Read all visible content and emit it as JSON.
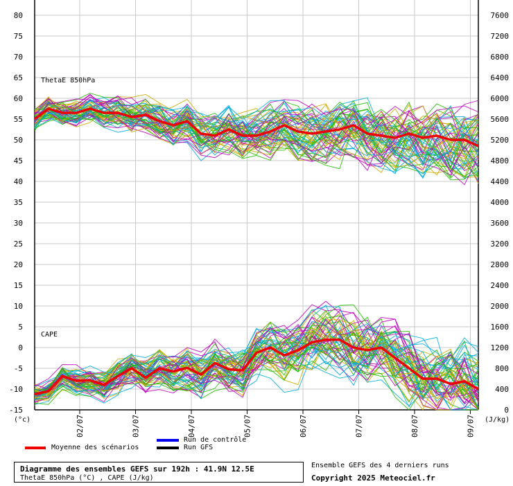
{
  "chart_data": {
    "type": "line",
    "panels": [
      {
        "label": "ThetaE 850hPa",
        "axis": "left",
        "unit": "(°c)"
      },
      {
        "label": "CAPE",
        "axis": "right",
        "unit": "(J/kg)"
      }
    ],
    "x_ticks": [
      "02/07",
      "03/07",
      "04/07",
      "05/07",
      "06/07",
      "07/07",
      "08/07",
      "09/07"
    ],
    "left_axis": {
      "unit": "(°c)",
      "ylim": [
        -15,
        80
      ],
      "ticks": [
        80,
        75,
        70,
        65,
        60,
        55,
        50,
        45,
        40,
        35,
        30,
        25,
        20,
        15,
        10,
        5,
        0,
        -5,
        -10,
        -15
      ]
    },
    "right_axis": {
      "unit": "(J/kg)",
      "ylim": [
        0,
        7600
      ],
      "ticks": [
        7600,
        7200,
        6800,
        6400,
        6000,
        5600,
        5200,
        4800,
        4400,
        4000,
        3600,
        3200,
        2800,
        2400,
        2000,
        1600,
        1200,
        800,
        400,
        0
      ]
    },
    "grid": true,
    "series": [
      {
        "name": "Moyenne des scénarios",
        "panel": "ThetaE 850hPa",
        "color": "#ee0000",
        "x": [
          "01/07 12h",
          "01/07 18h",
          "02/07 00h",
          "02/07 06h",
          "02/07 12h",
          "02/07 18h",
          "03/07 00h",
          "03/07 06h",
          "03/07 12h",
          "03/07 18h",
          "04/07 00h",
          "04/07 06h",
          "04/07 12h",
          "04/07 18h",
          "05/07 00h",
          "05/07 06h",
          "05/07 12h",
          "05/07 18h",
          "06/07 00h",
          "06/07 06h",
          "06/07 12h",
          "06/07 18h",
          "07/07 00h",
          "07/07 06h",
          "07/07 12h",
          "07/07 18h",
          "08/07 00h",
          "08/07 06h",
          "08/07 12h",
          "08/07 18h",
          "09/07 00h",
          "09/07 06h",
          "09/07 12h"
        ],
        "values": [
          55,
          57.5,
          56.5,
          56.5,
          57.5,
          56.5,
          56.5,
          55.5,
          56,
          54.5,
          53.5,
          54.5,
          51.5,
          51,
          52.5,
          51,
          51,
          52,
          53.5,
          52,
          51.5,
          52,
          52.5,
          53.5,
          51.5,
          51,
          50.5,
          51.5,
          50.5,
          51,
          50,
          50,
          48.5
        ]
      },
      {
        "name": "Moyenne des scénarios",
        "panel": "CAPE",
        "color": "#ee0000",
        "x": [
          "01/07 12h",
          "01/07 18h",
          "02/07 00h",
          "02/07 06h",
          "02/07 12h",
          "02/07 18h",
          "03/07 00h",
          "03/07 06h",
          "03/07 12h",
          "03/07 18h",
          "04/07 00h",
          "04/07 06h",
          "04/07 12h",
          "04/07 18h",
          "05/07 00h",
          "05/07 06h",
          "05/07 12h",
          "05/07 18h",
          "06/07 00h",
          "06/07 06h",
          "06/07 12h",
          "06/07 18h",
          "07/07 00h",
          "07/07 06h",
          "07/07 12h",
          "07/07 18h",
          "08/07 00h",
          "08/07 06h",
          "08/07 12h",
          "08/07 18h",
          "09/07 00h",
          "09/07 06h",
          "09/07 12h"
        ],
        "values": [
          300,
          360,
          650,
          560,
          570,
          480,
          650,
          800,
          620,
          800,
          740,
          810,
          680,
          900,
          780,
          760,
          1100,
          1200,
          1050,
          1150,
          1300,
          1350,
          1350,
          1200,
          1150,
          1200,
          1000,
          800,
          600,
          600,
          500,
          550,
          400
        ]
      }
    ],
    "ensemble_colors": [
      "#22bb00",
      "#bb00bb",
      "#ccaa00",
      "#00aadd"
    ],
    "ensemble_description": "Ensemble GEFS des 4 derniers runs"
  },
  "legend": {
    "mean_label": "Moyenne des scénarios",
    "mean_color": "#ee0000",
    "control_label": "Run de contrôle",
    "control_color": "#0000ee",
    "gfs_label": "Run GFS",
    "gfs_color": "#000000"
  },
  "info": {
    "title": "Diagramme des ensembles GEFS sur 192h : 41.9N 12.5E",
    "subtitle": "ThetaE 850hPa (°C) , CAPE (J/kg)"
  },
  "credits": {
    "ensemble": "Ensemble GEFS des 4 derniers runs",
    "copyright": "Copyright 2025 Meteociel.fr"
  }
}
